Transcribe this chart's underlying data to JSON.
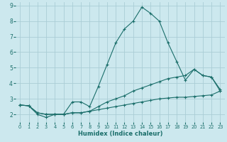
{
  "xlabel": "Humidex (Indice chaleur)",
  "xlim": [
    -0.5,
    23.5
  ],
  "ylim": [
    1.5,
    9.2
  ],
  "yticks": [
    2,
    3,
    4,
    5,
    6,
    7,
    8,
    9
  ],
  "xticks": [
    0,
    1,
    2,
    3,
    4,
    5,
    6,
    7,
    8,
    9,
    10,
    11,
    12,
    13,
    14,
    15,
    16,
    17,
    18,
    19,
    20,
    21,
    22,
    23
  ],
  "bg_color": "#cce8ee",
  "grid_color": "#aacdd6",
  "line_color": "#1a6e6a",
  "series1": [
    [
      0,
      2.6
    ],
    [
      1,
      2.55
    ],
    [
      2,
      2.0
    ],
    [
      3,
      1.8
    ],
    [
      4,
      2.0
    ],
    [
      5,
      2.0
    ],
    [
      6,
      2.8
    ],
    [
      7,
      2.8
    ],
    [
      8,
      2.5
    ],
    [
      9,
      3.8
    ],
    [
      10,
      5.2
    ],
    [
      11,
      6.6
    ],
    [
      12,
      7.5
    ],
    [
      13,
      8.0
    ],
    [
      14,
      8.9
    ],
    [
      15,
      8.5
    ],
    [
      16,
      8.0
    ],
    [
      17,
      6.6
    ],
    [
      18,
      5.4
    ],
    [
      19,
      4.2
    ],
    [
      20,
      4.9
    ],
    [
      21,
      4.5
    ],
    [
      22,
      4.4
    ],
    [
      23,
      3.6
    ]
  ],
  "series2": [
    [
      0,
      2.6
    ],
    [
      1,
      2.55
    ],
    [
      2,
      2.1
    ],
    [
      3,
      2.0
    ],
    [
      4,
      2.0
    ],
    [
      5,
      2.0
    ],
    [
      6,
      2.1
    ],
    [
      7,
      2.1
    ],
    [
      8,
      2.2
    ],
    [
      9,
      2.3
    ],
    [
      10,
      2.4
    ],
    [
      11,
      2.5
    ],
    [
      12,
      2.6
    ],
    [
      13,
      2.7
    ],
    [
      14,
      2.8
    ],
    [
      15,
      2.9
    ],
    [
      16,
      3.0
    ],
    [
      17,
      3.05
    ],
    [
      18,
      3.1
    ],
    [
      19,
      3.1
    ],
    [
      20,
      3.15
    ],
    [
      21,
      3.2
    ],
    [
      22,
      3.25
    ],
    [
      23,
      3.5
    ]
  ],
  "series3": [
    [
      0,
      2.6
    ],
    [
      1,
      2.55
    ],
    [
      2,
      2.1
    ],
    [
      3,
      2.0
    ],
    [
      4,
      2.0
    ],
    [
      5,
      2.0
    ],
    [
      6,
      2.1
    ],
    [
      7,
      2.1
    ],
    [
      8,
      2.2
    ],
    [
      9,
      2.5
    ],
    [
      10,
      2.8
    ],
    [
      11,
      3.0
    ],
    [
      12,
      3.2
    ],
    [
      13,
      3.5
    ],
    [
      14,
      3.7
    ],
    [
      15,
      3.9
    ],
    [
      16,
      4.1
    ],
    [
      17,
      4.3
    ],
    [
      18,
      4.4
    ],
    [
      19,
      4.5
    ],
    [
      20,
      4.9
    ],
    [
      21,
      4.5
    ],
    [
      22,
      4.4
    ],
    [
      23,
      3.5
    ]
  ],
  "xlabel_fontsize": 6.0,
  "tick_fontsize_x": 4.8,
  "tick_fontsize_y": 5.5
}
